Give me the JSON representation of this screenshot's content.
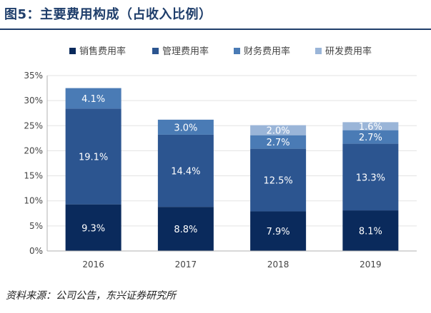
{
  "title": "图5：主要费用构成（占收入比例）",
  "source": "资料来源：公司公告，东兴证券研究所",
  "colors": {
    "sales": "#0a2a5c",
    "admin": "#2c5590",
    "finance": "#4a7bb5",
    "rnd": "#9ab5d8",
    "axis": "#b0b0b0",
    "grid": "#e3e3e3",
    "text": "#444444",
    "title": "#1f3e6b"
  },
  "chart_data": {
    "type": "bar",
    "stacked": true,
    "categories": [
      "2016",
      "2017",
      "2018",
      "2019"
    ],
    "series": [
      {
        "name": "销售费用率",
        "values": [
          9.3,
          8.8,
          7.9,
          8.1
        ],
        "labels": [
          "9.3%",
          "8.8%",
          "7.9%",
          "8.1%"
        ],
        "color": "#0a2a5c"
      },
      {
        "name": "管理费用率",
        "values": [
          19.1,
          14.4,
          12.5,
          13.3
        ],
        "labels": [
          "19.1%",
          "14.4%",
          "12.5%",
          "13.3%"
        ],
        "color": "#2c5590"
      },
      {
        "name": "财务费用率",
        "values": [
          4.1,
          3.0,
          2.7,
          2.7
        ],
        "labels": [
          "4.1%",
          "3.0%",
          "2.7%",
          "2.7%"
        ],
        "color": "#4a7bb5"
      },
      {
        "name": "研发费用率",
        "values": [
          null,
          null,
          2.0,
          1.6
        ],
        "labels": [
          "",
          "",
          "2.0%",
          "1.6%"
        ],
        "color": "#9ab5d8"
      }
    ],
    "ylim": [
      0,
      35
    ],
    "yticks": [
      "0%",
      "5%",
      "10%",
      "15%",
      "20%",
      "25%",
      "30%",
      "35%"
    ],
    "legend_position": "top",
    "grid": true
  }
}
